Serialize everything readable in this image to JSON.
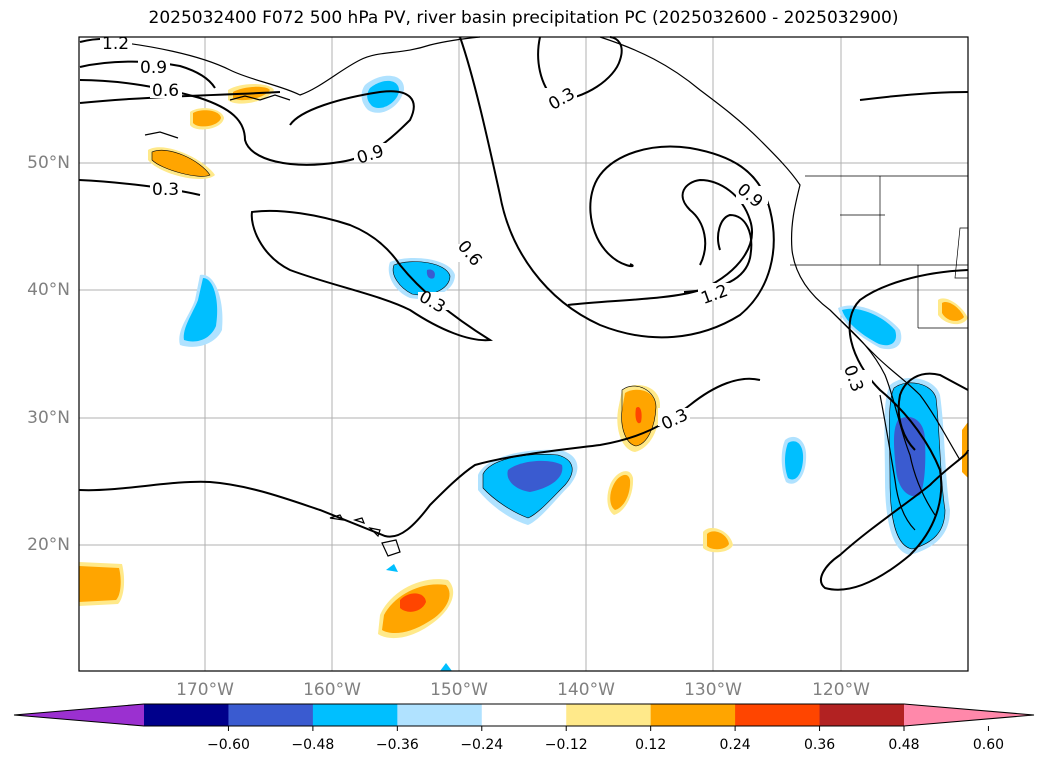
{
  "title": "2025032400 F072 500 hPa PV, river basin precipitation PC (2025032600 - 2025032900)",
  "lat_labels": [
    "50°N",
    "40°N",
    "30°N",
    "20°N"
  ],
  "lon_labels": [
    "170°W",
    "160°W",
    "150°W",
    "140°W",
    "130°W",
    "120°W"
  ],
  "contour_labels": [
    "1.2",
    "0.9",
    "0.6",
    "0.3",
    "0.9",
    "0.3",
    "0.6",
    "0.3",
    "0.9",
    "1.2",
    "0.3",
    "0.3"
  ],
  "colorbar": {
    "ticks": [
      "−0.60",
      "−0.48",
      "−0.36",
      "−0.24",
      "−0.12",
      "0.12",
      "0.24",
      "0.36",
      "0.48",
      "0.60"
    ],
    "colors": [
      "#9b30d0",
      "#00008b",
      "#3a5bd0",
      "#00bfff",
      "#b0e2ff",
      "#ffffff",
      "#ffe98a",
      "#ffa500",
      "#ff4500",
      "#b22222",
      "#ff88aa"
    ]
  },
  "colors": {
    "orange": "#ffa500",
    "light_yellow": "#ffe98a",
    "red_orange": "#ff4500",
    "deep_sky_blue": "#00bfff",
    "light_blue": "#b0e2ff",
    "royal_blue": "#3a5bd0"
  }
}
